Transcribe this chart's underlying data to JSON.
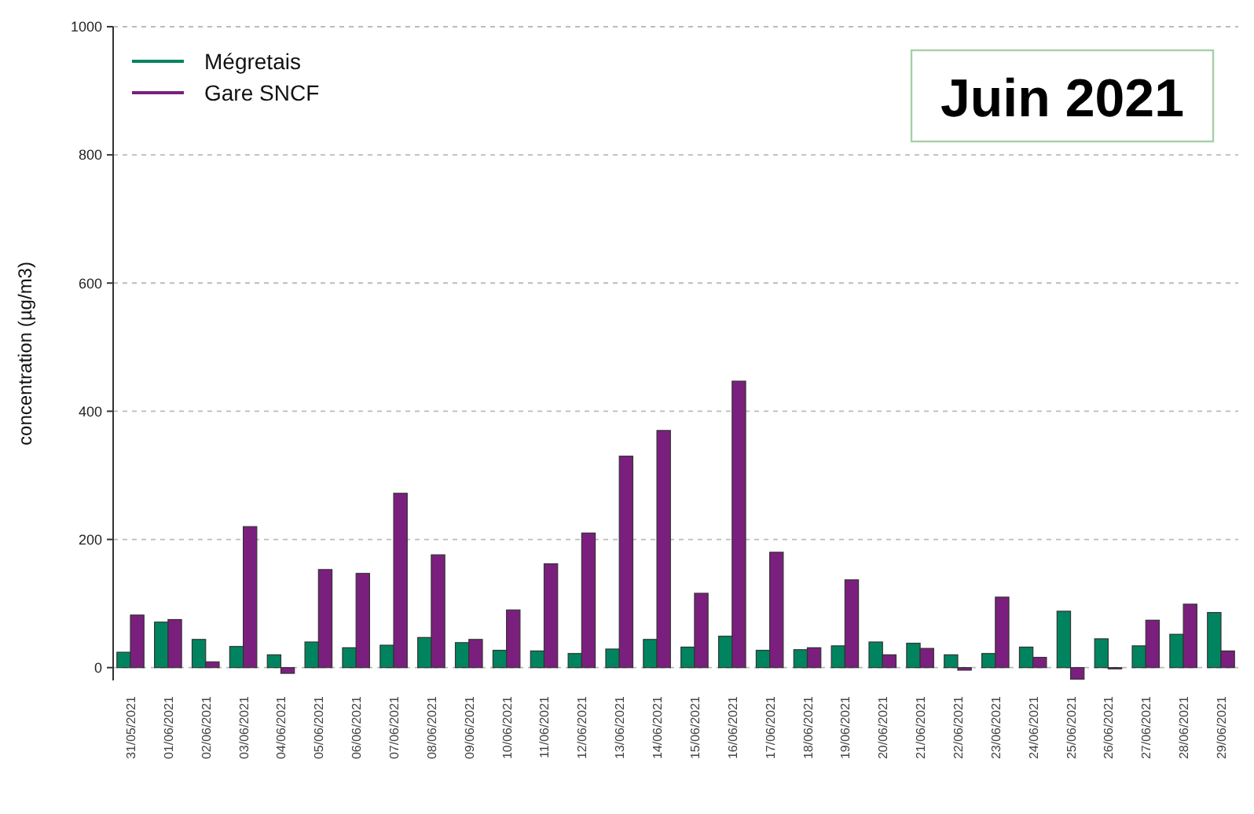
{
  "chart_data": {
    "type": "bar",
    "title": "Juin 2021",
    "ylabel": "concentration (µg/m3)",
    "categories": [
      "31/05/2021",
      "01/06/2021",
      "02/06/2021",
      "03/06/2021",
      "04/06/2021",
      "05/06/2021",
      "06/06/2021",
      "07/06/2021",
      "08/06/2021",
      "09/06/2021",
      "10/06/2021",
      "11/06/2021",
      "12/06/2021",
      "13/06/2021",
      "14/06/2021",
      "15/06/2021",
      "16/06/2021",
      "17/06/2021",
      "18/06/2021",
      "19/06/2021",
      "20/06/2021",
      "21/06/2021",
      "22/06/2021",
      "23/06/2021",
      "24/06/2021",
      "25/06/2021",
      "26/06/2021",
      "27/06/2021",
      "28/06/2021",
      "29/06/2021"
    ],
    "series": [
      {
        "name": "Mégretais",
        "color": "#00845f",
        "values": [
          24,
          71,
          44,
          33,
          20,
          40,
          31,
          35,
          47,
          39,
          27,
          26,
          22,
          29,
          44,
          32,
          49,
          27,
          28,
          34,
          40,
          38,
          20,
          22,
          32,
          88,
          45,
          34,
          52,
          86
        ]
      },
      {
        "name": "Gare SNCF",
        "color": "#7b1f7e",
        "values": [
          82,
          75,
          9,
          220,
          -9,
          153,
          147,
          272,
          176,
          44,
          90,
          162,
          210,
          330,
          370,
          116,
          447,
          180,
          31,
          137,
          20,
          30,
          -4,
          110,
          16,
          -18,
          -2,
          74,
          99,
          26
        ]
      }
    ],
    "ylim": [
      -20,
      1000
    ],
    "yticks": [
      0,
      200,
      400,
      600,
      800,
      1000
    ],
    "grid": "y",
    "legend": "top left"
  }
}
